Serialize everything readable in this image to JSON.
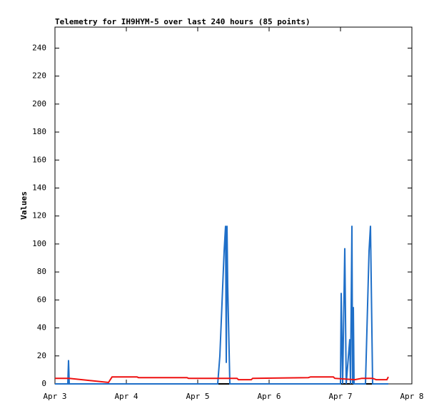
{
  "chart_data": {
    "type": "line",
    "title": "Telemetry for IH9HYM-5 over last 240 hours (85 points)",
    "y_label": "Values",
    "xlim": [
      3,
      8
    ],
    "xticks": [
      {
        "value": 3,
        "label": "Apr 3"
      },
      {
        "value": 4,
        "label": "Apr 4"
      },
      {
        "value": 5,
        "label": "Apr 5"
      },
      {
        "value": 6,
        "label": "Apr 6"
      },
      {
        "value": 7,
        "label": "Apr 7"
      },
      {
        "value": 8,
        "label": "Apr 8"
      }
    ],
    "ylim": [
      0,
      255
    ],
    "yticks": [
      0,
      20,
      40,
      60,
      80,
      100,
      120,
      140,
      160,
      180,
      200,
      220,
      240
    ],
    "grid": false,
    "series": [
      {
        "color": "#000000",
        "x": [
          3.0,
          7.67
        ],
        "values": [
          0,
          0
        ]
      },
      {
        "color": "#1f6fc8",
        "x": [
          3.0,
          3.18,
          3.19,
          3.2,
          5.28,
          5.31,
          5.37,
          5.39,
          5.4,
          5.41,
          5.42,
          5.45,
          7.0,
          7.01,
          7.03,
          7.06,
          7.08,
          7.13,
          7.14,
          7.16,
          7.17,
          7.18,
          7.19,
          7.35,
          7.4,
          7.42,
          7.45,
          7.67
        ],
        "values": [
          0,
          0,
          17,
          0,
          0,
          20,
          95,
          113,
          15,
          113,
          70,
          0,
          0,
          65,
          0,
          97,
          0,
          32,
          0,
          113,
          0,
          55,
          0,
          0,
          95,
          113,
          0,
          0
        ]
      },
      {
        "color": "#ee1111",
        "x": [
          3.0,
          3.2,
          3.75,
          3.8,
          4.15,
          4.17,
          4.85,
          4.87,
          5.55,
          5.57,
          5.75,
          5.77,
          6.55,
          6.58,
          6.9,
          6.92,
          7.2,
          7.3,
          7.45,
          7.5,
          7.65,
          7.67
        ],
        "values": [
          4,
          4,
          1,
          5,
          5,
          4.5,
          4.5,
          4,
          4,
          3,
          3,
          4,
          4.5,
          5,
          5,
          4,
          3,
          4,
          4,
          3,
          3,
          5
        ]
      }
    ]
  }
}
